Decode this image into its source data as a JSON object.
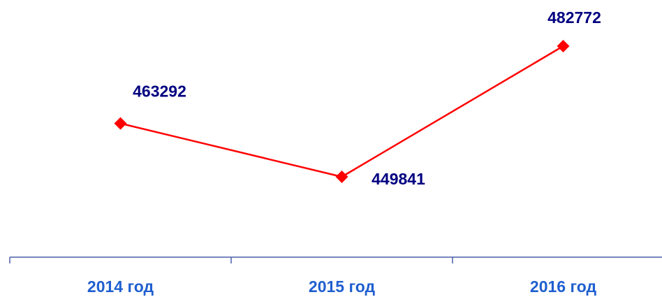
{
  "chart_data": {
    "type": "line",
    "categories": [
      "2014 год",
      "2015 год",
      "2016 год"
    ],
    "values": [
      463292,
      449841,
      482772
    ],
    "color": "#ff0000",
    "label_color": "#000080"
  }
}
